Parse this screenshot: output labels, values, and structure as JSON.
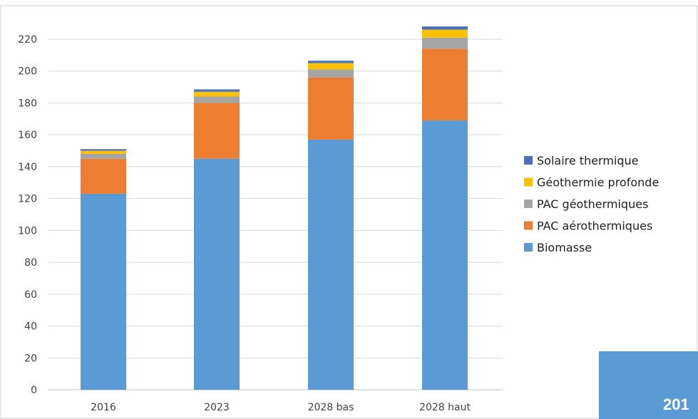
{
  "chart_data": {
    "type": "bar",
    "stacked": true,
    "categories": [
      "2016",
      "2023",
      "2028 bas",
      "2028 haut"
    ],
    "series": [
      {
        "name": "Biomasse",
        "color": "#5B9BD5",
        "values": [
          123,
          145,
          157,
          169
        ]
      },
      {
        "name": "PAC aérothermiques",
        "color": "#ED7D31",
        "values": [
          22,
          35,
          39,
          45
        ]
      },
      {
        "name": "PAC géothermiques",
        "color": "#A5A5A5",
        "values": [
          3,
          4,
          5,
          7
        ]
      },
      {
        "name": "Géothermie profonde",
        "color": "#FFC000",
        "values": [
          2,
          3,
          4,
          5
        ]
      },
      {
        "name": "Solaire thermique",
        "color": "#4472C4",
        "values": [
          1,
          1.5,
          1.5,
          2
        ]
      }
    ],
    "ylim": [
      0,
      230
    ],
    "yticks": [
      0,
      20,
      40,
      60,
      80,
      100,
      120,
      140,
      160,
      180,
      200,
      220
    ],
    "grid": true,
    "legend": {
      "position": "right",
      "order": [
        "Solaire thermique",
        "Géothermie profonde",
        "PAC géothermiques",
        "PAC aérothermiques",
        "Biomasse"
      ]
    },
    "title": "",
    "xlabel": "",
    "ylabel": ""
  },
  "corner_box": {
    "color": "#5B9BD5",
    "text": "201"
  },
  "colors": {
    "grid": "#d9d9d9",
    "axis": "#bfbfbf",
    "border": "#d0d0d0"
  }
}
